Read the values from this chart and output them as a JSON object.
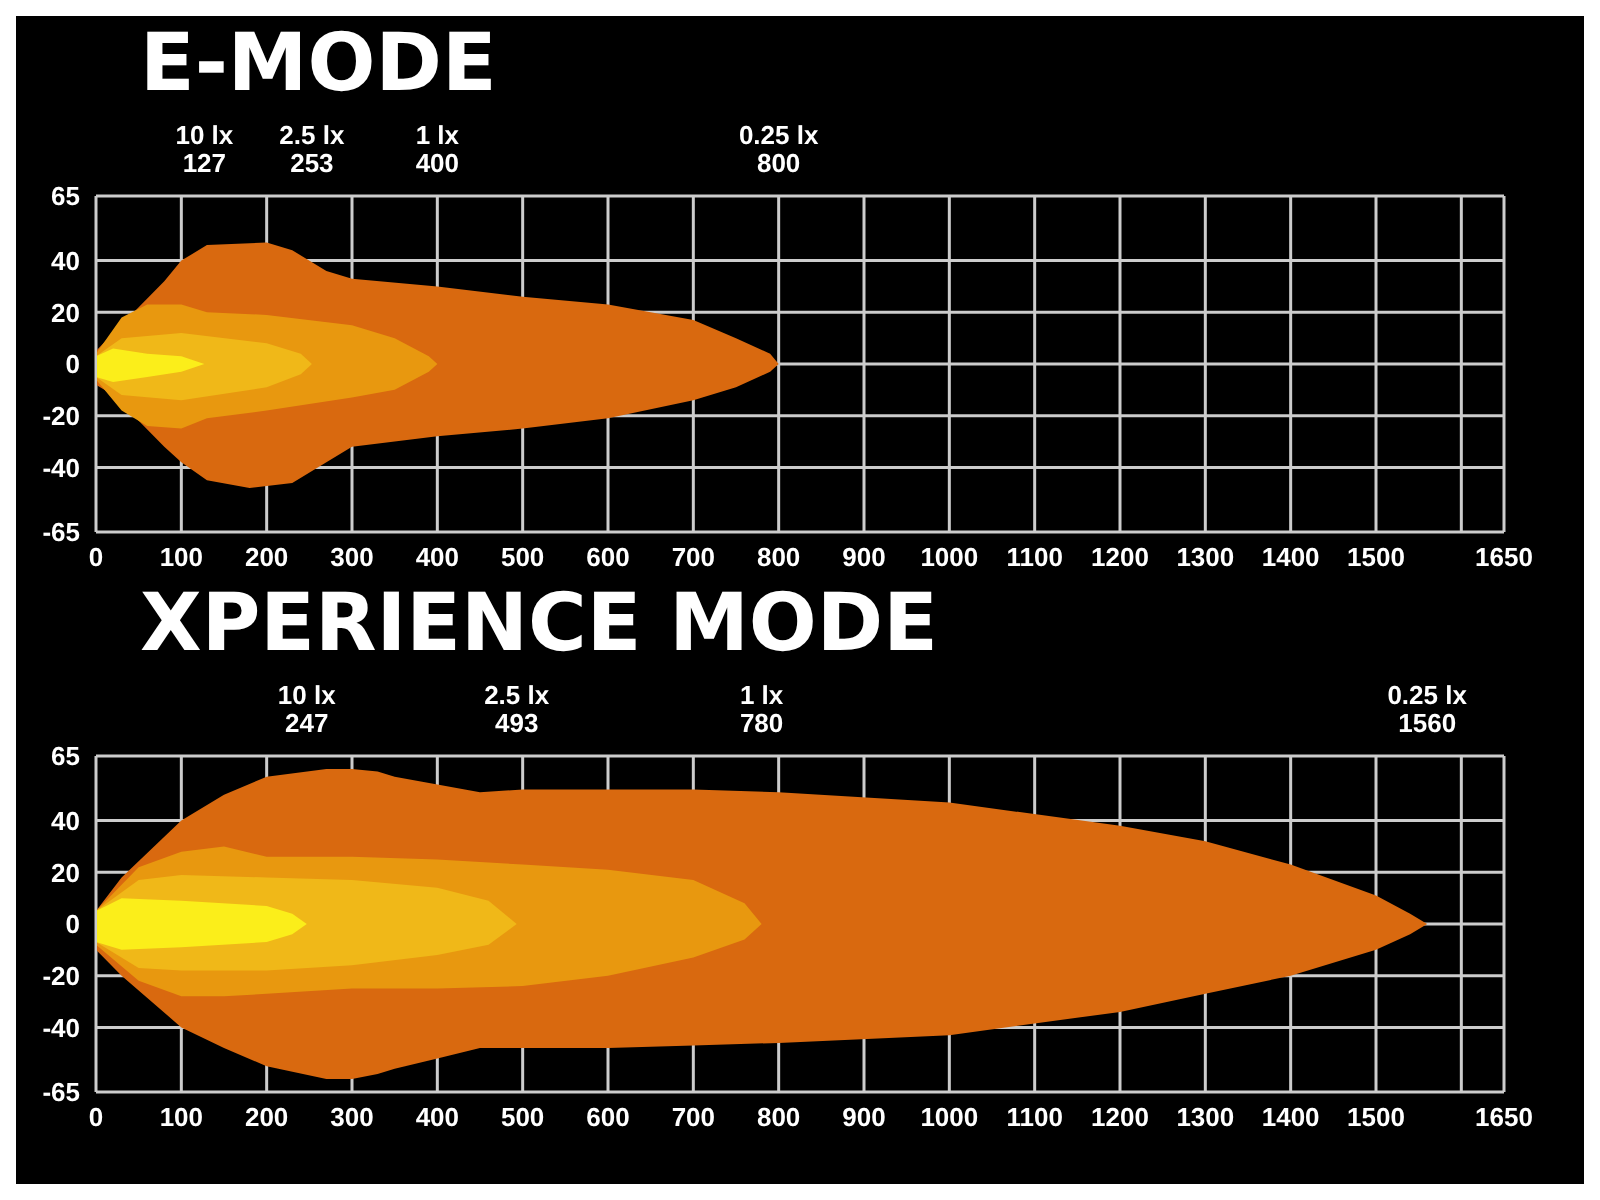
{
  "chart_data": [
    {
      "type": "area",
      "title": "E-MODE",
      "xlim": [
        0,
        1650
      ],
      "xticks": [
        0,
        100,
        200,
        300,
        400,
        500,
        600,
        700,
        800,
        900,
        1000,
        1100,
        1200,
        1300,
        1400,
        1500,
        {
          "value": 1600,
          "label": null
        },
        1650
      ],
      "ylim": [
        -65,
        65
      ],
      "yticks": [
        -65,
        -40,
        -20,
        0,
        20,
        40,
        65
      ],
      "grid": true,
      "x2lim": [
        0,
        1650
      ],
      "x2ticks": [
        127,
        253,
        400,
        800
      ],
      "annotations": [
        "10 lx",
        "2.5 lx",
        "1 lx",
        "0.25 lx"
      ],
      "series": [
        {
          "color": "#d9690f",
          "x": [
            0,
            20,
            50,
            80,
            100,
            130,
            200,
            230,
            270,
            300,
            400,
            500,
            600,
            700,
            750,
            790,
            800
          ],
          "values": [
            5,
            12,
            22,
            32,
            40,
            46,
            47,
            44,
            36,
            33,
            30,
            26,
            23,
            17,
            10,
            4,
            0
          ]
        },
        {
          "color": "#d9690f",
          "x": [
            0,
            20,
            50,
            80,
            100,
            130,
            180,
            230,
            270,
            300,
            400,
            500,
            600,
            700,
            750,
            790,
            800
          ],
          "values": [
            -8,
            -12,
            -22,
            -32,
            -38,
            -45,
            -48,
            -46,
            -38,
            -32,
            -28,
            -25,
            -21,
            -14,
            -9,
            -3,
            0
          ]
        },
        {
          "color": "#e8980f",
          "x": [
            0,
            30,
            60,
            100,
            130,
            200,
            300,
            350,
            390,
            400
          ],
          "values": [
            4,
            18,
            23,
            23,
            20,
            19,
            15,
            10,
            3,
            0
          ]
        },
        {
          "color": "#e8980f",
          "x": [
            0,
            30,
            60,
            100,
            130,
            200,
            300,
            350,
            390,
            400
          ],
          "values": [
            -6,
            -18,
            -24,
            -25,
            -21,
            -18,
            -13,
            -10,
            -3,
            0
          ]
        },
        {
          "color": "#f0b818",
          "x": [
            0,
            30,
            100,
            200,
            240,
            253
          ],
          "values": [
            3,
            10,
            12,
            8,
            4,
            0
          ]
        },
        {
          "color": "#f0b818",
          "x": [
            0,
            30,
            100,
            200,
            240,
            253
          ],
          "values": [
            -5,
            -12,
            -14,
            -9,
            -4,
            0
          ]
        },
        {
          "color": "#fbee1a",
          "x": [
            0,
            20,
            60,
            100,
            127
          ],
          "values": [
            3,
            6,
            4,
            3,
            0
          ]
        },
        {
          "color": "#fbee1a",
          "x": [
            0,
            20,
            60,
            100,
            127
          ],
          "values": [
            -5,
            -7,
            -5,
            -3,
            0
          ]
        }
      ]
    },
    {
      "type": "area",
      "title": "XPERIENCE MODE",
      "xlim": [
        0,
        1650
      ],
      "xticks": [
        0,
        100,
        200,
        300,
        400,
        500,
        600,
        700,
        800,
        900,
        1000,
        1100,
        1200,
        1300,
        1400,
        1500,
        {
          "value": 1600,
          "label": null
        },
        1650
      ],
      "ylim": [
        -65,
        65
      ],
      "yticks": [
        -65,
        -40,
        -20,
        0,
        20,
        40,
        65
      ],
      "grid": true,
      "x2lim": [
        0,
        1650
      ],
      "x2ticks": [
        247,
        493,
        780,
        1560
      ],
      "annotations": [
        "10 lx",
        "2.5 lx",
        "1 lx",
        "0.25 lx"
      ],
      "series": [
        {
          "color": "#d9690f",
          "x": [
            0,
            30,
            100,
            150,
            200,
            270,
            300,
            330,
            350,
            400,
            450,
            500,
            600,
            700,
            800,
            1000,
            1200,
            1300,
            1400,
            1500,
            1540,
            1560
          ],
          "values": [
            5,
            18,
            40,
            50,
            57,
            60,
            60,
            59,
            57,
            54,
            51,
            52,
            52,
            52,
            51,
            47,
            38,
            32,
            23,
            11,
            4,
            0
          ]
        },
        {
          "color": "#d9690f",
          "x": [
            0,
            30,
            100,
            150,
            200,
            270,
            300,
            330,
            350,
            400,
            450,
            500,
            600,
            700,
            800,
            1000,
            1200,
            1300,
            1400,
            1500,
            1540,
            1560
          ],
          "values": [
            -10,
            -20,
            -40,
            -48,
            -55,
            -60,
            -60,
            -58,
            -56,
            -52,
            -48,
            -48,
            -48,
            -47,
            -46,
            -43,
            -34,
            -27,
            -20,
            -10,
            -4,
            0
          ]
        },
        {
          "color": "#e8980f",
          "x": [
            0,
            50,
            100,
            150,
            200,
            300,
            400,
            500,
            600,
            700,
            760,
            780
          ],
          "values": [
            5,
            22,
            28,
            30,
            26,
            26,
            25,
            23,
            21,
            17,
            8,
            0
          ]
        },
        {
          "color": "#e8980f",
          "x": [
            0,
            50,
            100,
            150,
            200,
            300,
            400,
            500,
            600,
            700,
            760,
            780
          ],
          "values": [
            -8,
            -22,
            -28,
            -28,
            -27,
            -25,
            -25,
            -24,
            -20,
            -13,
            -6,
            0
          ]
        },
        {
          "color": "#f0b818",
          "x": [
            0,
            50,
            100,
            200,
            300,
            400,
            460,
            493
          ],
          "values": [
            5,
            17,
            19,
            18,
            17,
            14,
            9,
            0
          ]
        },
        {
          "color": "#f0b818",
          "x": [
            0,
            50,
            100,
            200,
            300,
            400,
            460,
            493
          ],
          "values": [
            -7,
            -17,
            -18,
            -18,
            -16,
            -12,
            -8,
            0
          ]
        },
        {
          "color": "#fbee1a",
          "x": [
            0,
            30,
            100,
            200,
            230,
            247
          ],
          "values": [
            5,
            10,
            9,
            7,
            4,
            0
          ]
        },
        {
          "color": "#fbee1a",
          "x": [
            0,
            30,
            100,
            200,
            230,
            247
          ],
          "values": [
            -7,
            -10,
            -9,
            -7,
            -4,
            0
          ]
        }
      ]
    }
  ]
}
